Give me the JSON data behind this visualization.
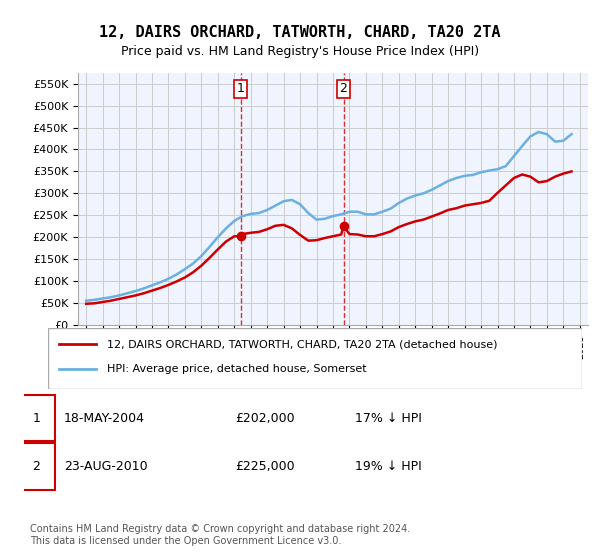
{
  "title": "12, DAIRS ORCHARD, TATWORTH, CHARD, TA20 2TA",
  "subtitle": "Price paid vs. HM Land Registry's House Price Index (HPI)",
  "xlabel": "",
  "ylabel": "",
  "ylim": [
    0,
    575000
  ],
  "yticks": [
    0,
    50000,
    100000,
    150000,
    200000,
    250000,
    300000,
    350000,
    400000,
    450000,
    500000,
    550000
  ],
  "ytick_labels": [
    "£0",
    "£50K",
    "£100K",
    "£150K",
    "£200K",
    "£250K",
    "£300K",
    "£350K",
    "£400K",
    "£450K",
    "£500K",
    "£550K"
  ],
  "hpi_color": "#6ab0e0",
  "price_color": "#cc0000",
  "vline_color": "#cc0000",
  "background_color": "#f0f4ff",
  "plot_bg_color": "#f0f4ff",
  "legend_label_price": "12, DAIRS ORCHARD, TATWORTH, CHARD, TA20 2TA (detached house)",
  "legend_label_hpi": "HPI: Average price, detached house, Somerset",
  "transaction1_date": "18-MAY-2004",
  "transaction1_price": "£202,000",
  "transaction1_hpi": "17% ↓ HPI",
  "transaction1_year": 2004.38,
  "transaction2_date": "23-AUG-2010",
  "transaction2_price": "£225,000",
  "transaction2_hpi": "19% ↓ HPI",
  "transaction2_year": 2010.64,
  "copyright_text": "Contains HM Land Registry data © Crown copyright and database right 2024.\nThis data is licensed under the Open Government Licence v3.0.",
  "hpi_x": [
    1995,
    1995.5,
    1996,
    1996.5,
    1997,
    1997.5,
    1998,
    1998.5,
    1999,
    1999.5,
    2000,
    2000.5,
    2001,
    2001.5,
    2002,
    2002.5,
    2003,
    2003.5,
    2004,
    2004.5,
    2005,
    2005.5,
    2006,
    2006.5,
    2007,
    2007.5,
    2008,
    2008.5,
    2009,
    2009.5,
    2010,
    2010.5,
    2011,
    2011.5,
    2012,
    2012.5,
    2013,
    2013.5,
    2014,
    2014.5,
    2015,
    2015.5,
    2016,
    2016.5,
    2017,
    2017.5,
    2018,
    2018.5,
    2019,
    2019.5,
    2020,
    2020.5,
    2021,
    2021.5,
    2022,
    2022.5,
    2023,
    2023.5,
    2024,
    2024.5
  ],
  "hpi_y": [
    55000,
    57000,
    60000,
    63000,
    67000,
    72000,
    77000,
    83000,
    90000,
    97000,
    105000,
    115000,
    127000,
    140000,
    157000,
    178000,
    200000,
    220000,
    237000,
    248000,
    253000,
    255000,
    262000,
    272000,
    282000,
    285000,
    275000,
    255000,
    240000,
    242000,
    248000,
    252000,
    258000,
    258000,
    252000,
    252000,
    258000,
    265000,
    278000,
    288000,
    295000,
    300000,
    308000,
    318000,
    328000,
    335000,
    340000,
    342000,
    348000,
    352000,
    355000,
    362000,
    385000,
    408000,
    430000,
    440000,
    435000,
    418000,
    420000,
    435000
  ],
  "price_x": [
    1995,
    1995.5,
    1996,
    1996.5,
    1997,
    1997.5,
    1998,
    1998.5,
    1999,
    1999.5,
    2000,
    2000.5,
    2001,
    2001.5,
    2002,
    2002.5,
    2003,
    2003.5,
    2004,
    2004.38,
    2004.5,
    2005,
    2005.5,
    2006,
    2006.5,
    2007,
    2007.5,
    2008,
    2008.5,
    2009,
    2009.5,
    2010,
    2010.5,
    2010.64,
    2011,
    2011.5,
    2012,
    2012.5,
    2013,
    2013.5,
    2014,
    2014.5,
    2015,
    2015.5,
    2016,
    2016.5,
    2017,
    2017.5,
    2018,
    2018.5,
    2019,
    2019.5,
    2020,
    2020.5,
    2021,
    2021.5,
    2022,
    2022.5,
    2023,
    2023.5,
    2024,
    2024.5
  ],
  "price_y": [
    48000,
    49000,
    52000,
    55000,
    59000,
    63000,
    67000,
    72000,
    78000,
    84000,
    91000,
    99000,
    108000,
    120000,
    135000,
    153000,
    172000,
    190000,
    202000,
    202000,
    207000,
    210000,
    212000,
    218000,
    226000,
    228000,
    220000,
    205000,
    192000,
    193000,
    198000,
    202000,
    206000,
    225000,
    207000,
    206000,
    202000,
    202000,
    207000,
    213000,
    223000,
    230000,
    236000,
    240000,
    247000,
    254000,
    262000,
    266000,
    272000,
    275000,
    278000,
    283000,
    301000,
    318000,
    335000,
    343000,
    338000,
    325000,
    328000,
    338000,
    345000,
    350000
  ]
}
